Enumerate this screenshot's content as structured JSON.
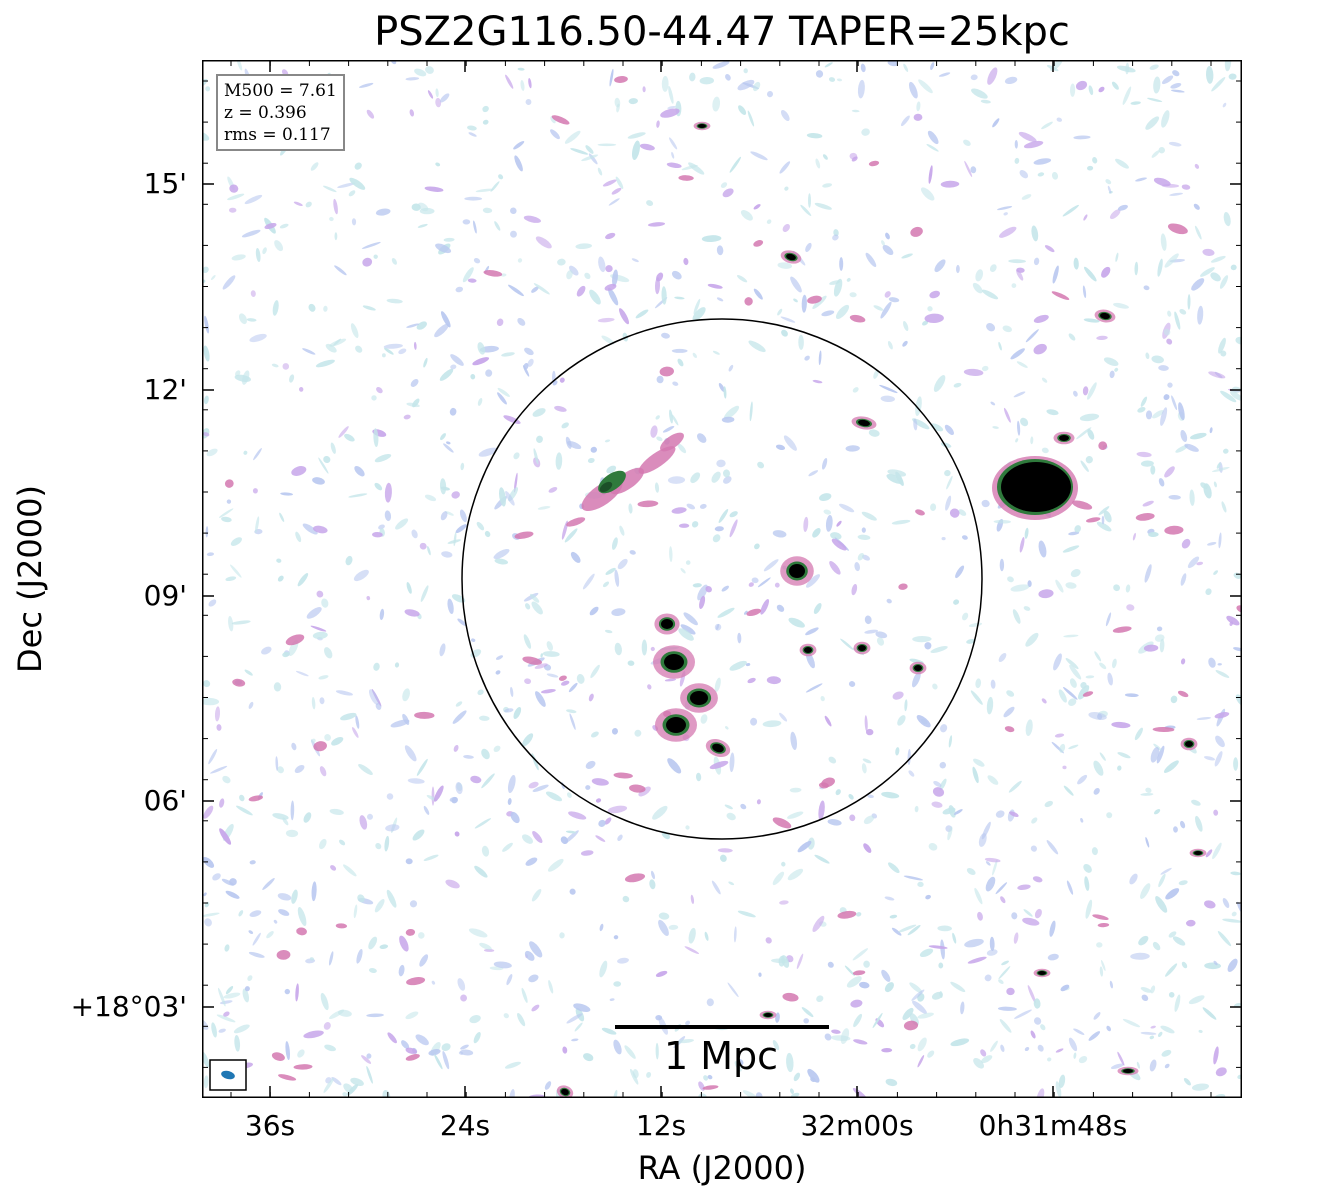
{
  "title": "PSZ2G116.50-44.47 TAPER=25kpc",
  "axes": {
    "xlabel": "RA (J2000)",
    "ylabel": "Dec (J2000)",
    "x_ticks": [
      "36s",
      "24s",
      "12s",
      "32m00s",
      "0h31m48s"
    ],
    "y_ticks": [
      "15'",
      "12'",
      "09'",
      "06'",
      "+18°03'"
    ]
  },
  "info": {
    "m500": "M500 = 7.61",
    "z": "z = 0.396",
    "rms": "rms = 0.117"
  },
  "scalebar": {
    "label": "1 Mpc"
  },
  "colors": {
    "noise_light": "#c5e6ea",
    "noise_blue": "#b9c8f0",
    "noise_violet": "#c7a6ea",
    "source_pink": "#d478b0",
    "source_green": "#2f7a3c",
    "source_core": "#000000",
    "beam": "#1f77b4"
  }
}
